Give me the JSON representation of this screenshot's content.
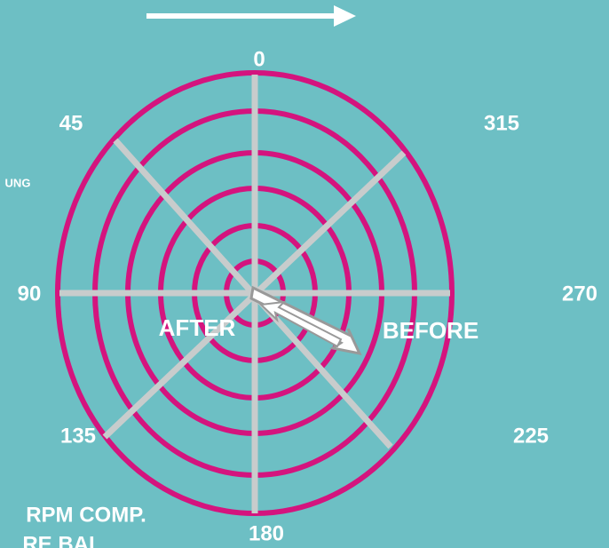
{
  "angle_labels": [
    "0",
    "45",
    "315",
    "90",
    "270",
    "135",
    "225",
    "180"
  ],
  "vectors": {
    "after": "AFTER",
    "before": "BEFORE"
  },
  "side_texts": {
    "fragment": "UNG",
    "rpm": "RPM COMP.",
    "balance": "RE BAL"
  }
}
